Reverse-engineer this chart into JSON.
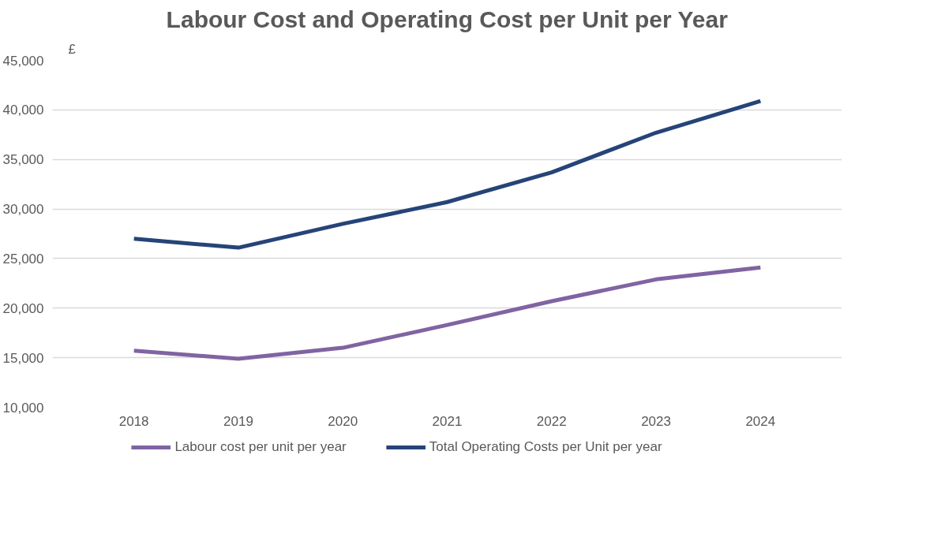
{
  "chart_data": {
    "type": "line",
    "title": "Labour Cost and Operating Cost per Unit per Year",
    "ylabel": "£",
    "categories": [
      "2018",
      "2019",
      "2020",
      "2021",
      "2022",
      "2023",
      "2024"
    ],
    "series": [
      {
        "name": "Labour cost per unit per year",
        "color": "#8064a2",
        "values": [
          15700,
          14900,
          16000,
          18300,
          20700,
          22900,
          24100
        ]
      },
      {
        "name": "Total Operating Costs per Unit per year",
        "color": "#264478",
        "values": [
          27000,
          26100,
          28500,
          30700,
          33700,
          37700,
          40900
        ]
      }
    ],
    "ylim": [
      10000,
      45000
    ],
    "yticks": [
      {
        "value": 10000,
        "label": "10,000"
      },
      {
        "value": 15000,
        "label": "15,000"
      },
      {
        "value": 20000,
        "label": "20,000"
      },
      {
        "value": 25000,
        "label": "25,000"
      },
      {
        "value": 30000,
        "label": "30,000"
      },
      {
        "value": 35000,
        "label": "35,000"
      },
      {
        "value": 40000,
        "label": "40,000"
      },
      {
        "value": 45000,
        "label": "45,000"
      }
    ],
    "grid": "y",
    "legend": "bottom",
    "marker": "none",
    "line_style": "solid"
  }
}
